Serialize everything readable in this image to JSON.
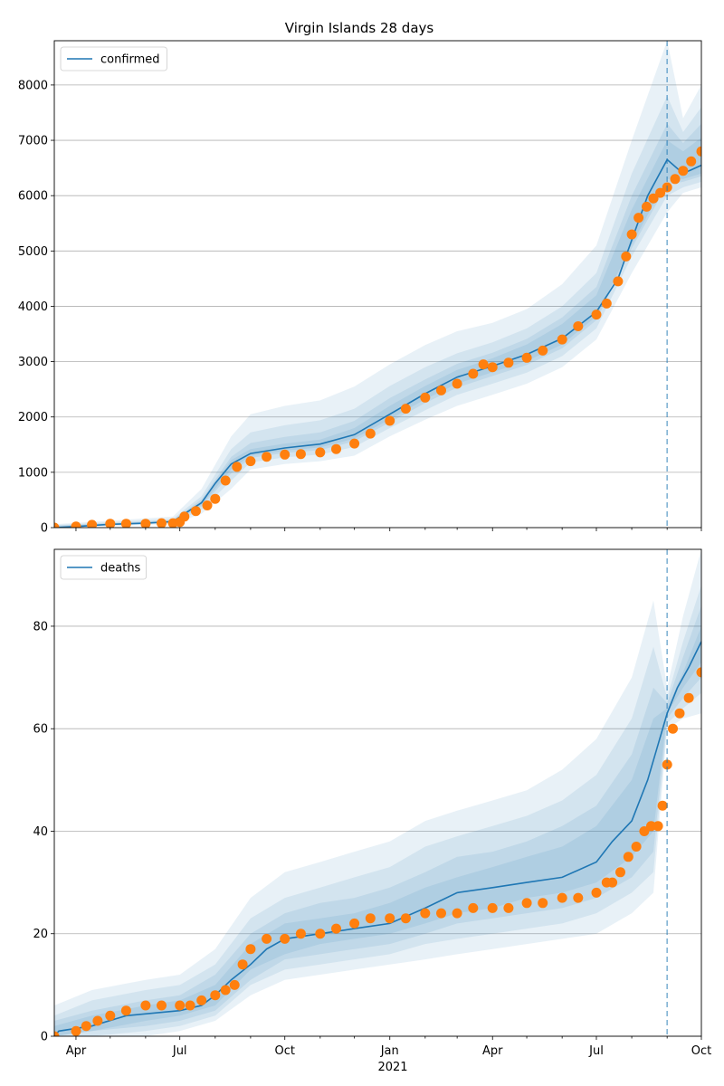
{
  "title": "Virgin Islands 28 days",
  "colors": {
    "line": "#1f77b4",
    "points": "#ff7f0e",
    "band": "#1f77b4",
    "grid": "#b0b0b0",
    "vline": "#1f77b4"
  },
  "x_axis": {
    "ticks": [
      {
        "date": "2020-04-01",
        "label": "Apr"
      },
      {
        "date": "2020-07-01",
        "label": "Jul"
      },
      {
        "date": "2020-10-01",
        "label": "Oct"
      },
      {
        "date": "2021-01-01",
        "label": "Jan"
      },
      {
        "date": "2021-04-01",
        "label": "Apr"
      },
      {
        "date": "2021-07-01",
        "label": "Jul"
      },
      {
        "date": "2021-10-01",
        "label": "Oct"
      }
    ],
    "year_label": "2021",
    "range": [
      "2020-03-13",
      "2021-10-01"
    ]
  },
  "chart_data": [
    {
      "type": "line",
      "legend": "confirmed",
      "legend_position": "upper left",
      "grid": "horizontal",
      "ylim": [
        0,
        8800
      ],
      "yticks": [
        0,
        1000,
        2000,
        3000,
        4000,
        5000,
        6000,
        7000,
        8000
      ],
      "forecast_start": "2021-09-01",
      "model_line": {
        "x": [
          "2020-03-13",
          "2020-04-01",
          "2020-05-01",
          "2020-06-01",
          "2020-06-25",
          "2020-07-05",
          "2020-07-20",
          "2020-08-01",
          "2020-08-15",
          "2020-09-01",
          "2020-10-01",
          "2020-11-01",
          "2020-12-01",
          "2021-01-01",
          "2021-02-01",
          "2021-03-01",
          "2021-04-01",
          "2021-05-01",
          "2021-06-01",
          "2021-07-01",
          "2021-07-20",
          "2021-08-01",
          "2021-08-15",
          "2021-09-01",
          "2021-09-15",
          "2021-10-01"
        ],
        "y": [
          0,
          20,
          60,
          80,
          110,
          250,
          450,
          800,
          1150,
          1340,
          1440,
          1510,
          1680,
          2050,
          2420,
          2720,
          2920,
          3130,
          3420,
          3900,
          4500,
          5200,
          6000,
          6650,
          6400,
          6550
        ]
      },
      "bands": [
        {
          "x": [
            "2020-03-13",
            "2020-06-25",
            "2020-07-20",
            "2020-08-15",
            "2020-09-01",
            "2020-10-01",
            "2020-11-01",
            "2020-12-01",
            "2021-01-01",
            "2021-02-01",
            "2021-03-01",
            "2021-04-01",
            "2021-05-01",
            "2021-06-01",
            "2021-07-01",
            "2021-08-01",
            "2021-09-01",
            "2021-09-15",
            "2021-10-01"
          ],
          "lower": [
            0,
            60,
            250,
            700,
            1050,
            1150,
            1200,
            1300,
            1650,
            1950,
            2200,
            2400,
            2600,
            2900,
            3400,
            4600,
            5700,
            6050,
            6150
          ],
          "upper": [
            60,
            200,
            700,
            1650,
            2050,
            2200,
            2300,
            2550,
            2950,
            3300,
            3550,
            3700,
            3950,
            4400,
            5100,
            7000,
            8800,
            7400,
            8000
          ]
        },
        {
          "x": [
            "2020-03-13",
            "2020-06-25",
            "2020-07-20",
            "2020-08-15",
            "2020-09-01",
            "2020-10-01",
            "2020-11-01",
            "2020-12-01",
            "2021-01-01",
            "2021-02-01",
            "2021-03-01",
            "2021-04-01",
            "2021-05-01",
            "2021-06-01",
            "2021-07-01",
            "2021-08-01",
            "2021-09-01",
            "2021-09-15",
            "2021-10-01"
          ],
          "lower": [
            0,
            80,
            320,
            850,
            1180,
            1270,
            1320,
            1460,
            1800,
            2120,
            2400,
            2600,
            2800,
            3100,
            3600,
            4900,
            6000,
            6150,
            6250
          ],
          "upper": [
            45,
            160,
            570,
            1420,
            1720,
            1850,
            1940,
            2150,
            2560,
            2900,
            3150,
            3350,
            3600,
            4000,
            4600,
            6400,
            7800,
            7150,
            7600
          ]
        },
        {
          "x": [
            "2020-03-13",
            "2020-06-25",
            "2020-07-20",
            "2020-08-15",
            "2020-09-01",
            "2020-10-01",
            "2020-11-01",
            "2020-12-01",
            "2021-01-01",
            "2021-02-01",
            "2021-03-01",
            "2021-04-01",
            "2021-05-01",
            "2021-06-01",
            "2021-07-01",
            "2021-08-01",
            "2021-09-01",
            "2021-09-15",
            "2021-10-01"
          ],
          "lower": [
            0,
            95,
            380,
            980,
            1260,
            1350,
            1400,
            1560,
            1900,
            2250,
            2530,
            2740,
            2940,
            3240,
            3750,
            5050,
            6200,
            6250,
            6350
          ],
          "upper": [
            35,
            135,
            510,
            1280,
            1530,
            1640,
            1720,
            1930,
            2340,
            2680,
            2960,
            3160,
            3410,
            3800,
            4350,
            6000,
            7300,
            6950,
            7300
          ]
        },
        {
          "x": [
            "2020-03-13",
            "2020-06-25",
            "2020-07-20",
            "2020-08-15",
            "2020-09-01",
            "2020-10-01",
            "2020-11-01",
            "2020-12-01",
            "2021-01-01",
            "2021-02-01",
            "2021-03-01",
            "2021-04-01",
            "2021-05-01",
            "2021-06-01",
            "2021-07-01",
            "2021-08-01",
            "2021-09-01",
            "2021-09-15",
            "2021-10-01"
          ],
          "lower": [
            0,
            100,
            410,
            1050,
            1300,
            1390,
            1450,
            1610,
            1960,
            2320,
            2600,
            2810,
            3010,
            3310,
            3820,
            5120,
            6300,
            6300,
            6400
          ],
          "upper": [
            25,
            120,
            480,
            1220,
            1420,
            1520,
            1590,
            1800,
            2200,
            2560,
            2850,
            3060,
            3310,
            3680,
            4200,
            5750,
            7000,
            6800,
            7050
          ]
        }
      ],
      "observed": {
        "x": [
          "2020-03-13",
          "2020-04-01",
          "2020-04-15",
          "2020-05-01",
          "2020-05-15",
          "2020-06-01",
          "2020-06-15",
          "2020-06-25",
          "2020-07-01",
          "2020-07-05",
          "2020-07-15",
          "2020-07-25",
          "2020-08-01",
          "2020-08-10",
          "2020-08-20",
          "2020-09-01",
          "2020-09-15",
          "2020-10-01",
          "2020-10-15",
          "2020-11-01",
          "2020-11-15",
          "2020-12-01",
          "2020-12-15",
          "2021-01-01",
          "2021-01-15",
          "2021-02-01",
          "2021-02-15",
          "2021-03-01",
          "2021-03-15",
          "2021-03-24",
          "2021-04-01",
          "2021-04-15",
          "2021-05-01",
          "2021-05-15",
          "2021-06-01",
          "2021-06-15",
          "2021-07-01",
          "2021-07-10",
          "2021-07-20",
          "2021-07-27",
          "2021-08-01",
          "2021-08-07",
          "2021-08-14",
          "2021-08-20",
          "2021-08-26",
          "2021-09-01",
          "2021-09-08",
          "2021-09-15",
          "2021-09-22",
          "2021-10-01"
        ],
        "y": [
          0,
          20,
          50,
          70,
          70,
          70,
          80,
          80,
          100,
          200,
          300,
          400,
          520,
          850,
          1100,
          1200,
          1280,
          1320,
          1330,
          1360,
          1420,
          1520,
          1700,
          1930,
          2150,
          2350,
          2480,
          2600,
          2780,
          2950,
          2900,
          2980,
          3070,
          3200,
          3400,
          3640,
          3850,
          4050,
          4450,
          4900,
          5300,
          5600,
          5800,
          5950,
          6050,
          6150,
          6300,
          6450,
          6620,
          6800
        ]
      }
    },
    {
      "type": "line",
      "legend": "deaths",
      "legend_position": "upper left",
      "grid": "horizontal",
      "ylim": [
        0,
        95
      ],
      "yticks": [
        0,
        20,
        40,
        60,
        80
      ],
      "forecast_start": "2021-09-01",
      "model_line": {
        "x": [
          "2020-03-13",
          "2020-03-17",
          "2020-04-15",
          "2020-05-15",
          "2020-07-01",
          "2020-07-20",
          "2020-08-01",
          "2020-08-15",
          "2020-09-01",
          "2020-09-15",
          "2020-10-01",
          "2020-11-01",
          "2020-12-01",
          "2021-01-01",
          "2021-02-01",
          "2021-03-01",
          "2021-04-01",
          "2021-05-01",
          "2021-06-01",
          "2021-07-01",
          "2021-07-15",
          "2021-08-01",
          "2021-08-15",
          "2021-09-01",
          "2021-09-10",
          "2021-09-20",
          "2021-10-01"
        ],
        "y": [
          0,
          1,
          2,
          4,
          5,
          6,
          8,
          11,
          14,
          17,
          19,
          20,
          21,
          22,
          25,
          28,
          29,
          30,
          31,
          34,
          38,
          42,
          50,
          63,
          68,
          72,
          77
        ]
      },
      "bands": [
        {
          "x": [
            "2020-03-13",
            "2020-04-15",
            "2020-06-01",
            "2020-07-01",
            "2020-08-01",
            "2020-09-01",
            "2020-10-01",
            "2020-11-01",
            "2020-12-01",
            "2021-01-01",
            "2021-02-01",
            "2021-03-01",
            "2021-04-01",
            "2021-05-01",
            "2021-06-01",
            "2021-07-01",
            "2021-08-01",
            "2021-08-20",
            "2021-09-01",
            "2021-09-15",
            "2021-10-01"
          ],
          "lower": [
            0,
            0,
            0,
            1,
            3,
            8,
            11,
            12,
            13,
            14,
            15,
            16,
            17,
            18,
            19,
            20,
            24,
            28,
            60,
            62,
            63
          ],
          "upper": [
            6,
            9,
            11,
            12,
            17,
            27,
            32,
            34,
            36,
            38,
            42,
            44,
            46,
            48,
            52,
            58,
            70,
            85,
            68,
            82,
            95
          ]
        },
        {
          "x": [
            "2020-03-13",
            "2020-04-15",
            "2020-06-01",
            "2020-07-01",
            "2020-08-01",
            "2020-09-01",
            "2020-10-01",
            "2020-11-01",
            "2020-12-01",
            "2021-01-01",
            "2021-02-01",
            "2021-03-01",
            "2021-04-01",
            "2021-05-01",
            "2021-06-01",
            "2021-07-01",
            "2021-08-01",
            "2021-08-20",
            "2021-09-01",
            "2021-09-15",
            "2021-10-01"
          ],
          "lower": [
            0,
            0,
            1,
            2,
            4,
            10,
            13,
            14,
            15,
            16,
            18,
            19,
            20,
            21,
            22,
            24,
            28,
            32,
            61,
            64,
            67
          ],
          "upper": [
            4,
            7,
            9,
            10,
            14,
            23,
            27,
            29,
            31,
            33,
            37,
            39,
            41,
            43,
            46,
            51,
            62,
            76,
            66,
            77,
            88
          ]
        },
        {
          "x": [
            "2020-03-13",
            "2020-04-15",
            "2020-06-01",
            "2020-07-01",
            "2020-08-01",
            "2020-09-01",
            "2020-10-01",
            "2020-11-01",
            "2020-12-01",
            "2021-01-01",
            "2021-02-01",
            "2021-03-01",
            "2021-04-01",
            "2021-05-01",
            "2021-06-01",
            "2021-07-01",
            "2021-08-01",
            "2021-08-20",
            "2021-09-01",
            "2021-09-15",
            "2021-10-01"
          ],
          "lower": [
            0,
            1,
            2,
            3,
            5,
            11,
            15,
            16,
            17,
            18,
            20,
            22,
            23,
            24,
            25,
            27,
            31,
            36,
            62,
            66,
            70
          ],
          "upper": [
            3,
            5,
            7,
            8,
            12,
            20,
            24,
            26,
            27,
            29,
            32,
            35,
            36,
            38,
            41,
            45,
            55,
            68,
            65,
            74,
            84
          ]
        },
        {
          "x": [
            "2020-03-13",
            "2020-04-15",
            "2020-06-01",
            "2020-07-01",
            "2020-08-01",
            "2020-09-01",
            "2020-10-01",
            "2020-11-01",
            "2020-12-01",
            "2021-01-01",
            "2021-02-01",
            "2021-03-01",
            "2021-04-01",
            "2021-05-01",
            "2021-06-01",
            "2021-07-01",
            "2021-08-01",
            "2021-08-20",
            "2021-09-01",
            "2021-09-15",
            "2021-10-01"
          ],
          "lower": [
            0,
            1,
            3,
            4,
            6,
            13,
            16,
            18,
            19,
            20,
            22,
            24,
            25,
            27,
            28,
            30,
            35,
            40,
            63,
            68,
            73
          ],
          "upper": [
            2,
            4,
            6,
            7,
            10,
            18,
            22,
            23,
            24,
            26,
            29,
            31,
            33,
            35,
            37,
            41,
            50,
            62,
            64,
            71,
            80
          ]
        }
      ],
      "observed": {
        "x": [
          "2020-03-13",
          "2020-04-01",
          "2020-04-10",
          "2020-04-20",
          "2020-05-01",
          "2020-05-15",
          "2020-06-01",
          "2020-06-15",
          "2020-07-01",
          "2020-07-10",
          "2020-07-20",
          "2020-08-01",
          "2020-08-10",
          "2020-08-18",
          "2020-08-25",
          "2020-09-01",
          "2020-09-15",
          "2020-10-01",
          "2020-10-15",
          "2020-11-01",
          "2020-11-15",
          "2020-12-01",
          "2020-12-15",
          "2021-01-01",
          "2021-01-15",
          "2021-02-01",
          "2021-02-15",
          "2021-03-01",
          "2021-03-15",
          "2021-04-01",
          "2021-04-15",
          "2021-05-01",
          "2021-05-15",
          "2021-06-01",
          "2021-06-15",
          "2021-07-01",
          "2021-07-10",
          "2021-07-15",
          "2021-07-22",
          "2021-07-29",
          "2021-08-05",
          "2021-08-12",
          "2021-08-18",
          "2021-08-24",
          "2021-08-28",
          "2021-09-01",
          "2021-09-06",
          "2021-09-12",
          "2021-09-20",
          "2021-10-01"
        ],
        "y": [
          0,
          1,
          2,
          3,
          4,
          5,
          6,
          6,
          6,
          6,
          7,
          8,
          9,
          10,
          14,
          17,
          19,
          19,
          20,
          20,
          21,
          22,
          23,
          23,
          23,
          24,
          24,
          24,
          25,
          25,
          25,
          26,
          26,
          27,
          27,
          28,
          30,
          30,
          32,
          35,
          37,
          40,
          41,
          41,
          45,
          53,
          60,
          63,
          66,
          71
        ]
      }
    }
  ]
}
